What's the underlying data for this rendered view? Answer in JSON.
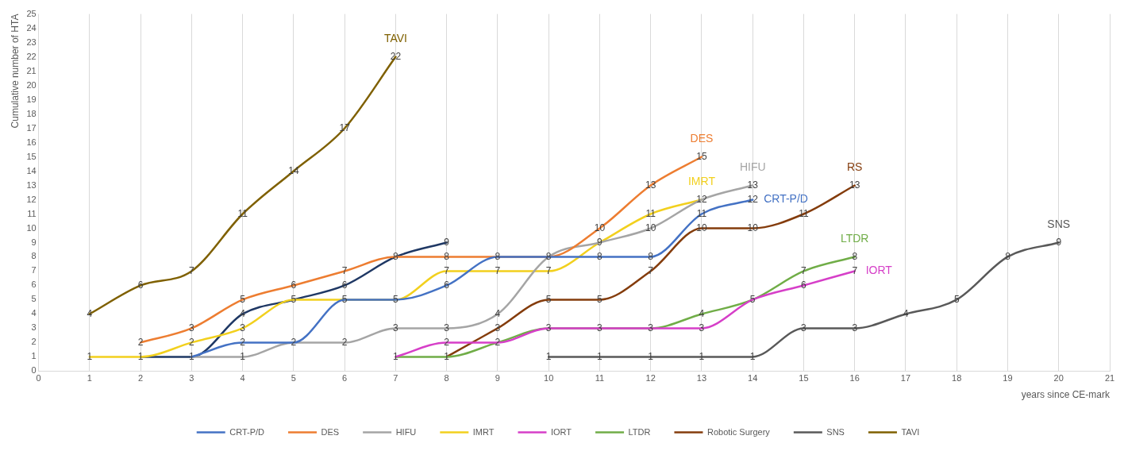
{
  "chart_data": {
    "type": "line",
    "xlabel": "years since CE-mark",
    "ylabel": "Cumulative number of HTA",
    "xlim": [
      0,
      21
    ],
    "xticks": [
      0,
      1,
      2,
      3,
      4,
      5,
      6,
      7,
      8,
      9,
      10,
      11,
      12,
      13,
      14,
      15,
      16,
      17,
      18,
      19,
      20,
      21
    ],
    "ylim": [
      0,
      25
    ],
    "yticks": [
      0,
      1,
      2,
      3,
      4,
      5,
      6,
      7,
      8,
      9,
      10,
      11,
      12,
      13,
      14,
      15,
      16,
      17,
      18,
      19,
      20,
      21,
      22,
      23,
      24,
      25
    ],
    "grid": "x",
    "legend": "bottom",
    "line_style": "solid",
    "series": [
      {
        "name": "CRT-P/D",
        "color": "#4472c4",
        "x": [
          3,
          4,
          5,
          6,
          7,
          8,
          9,
          10,
          11,
          12,
          13,
          14
        ],
        "values": [
          1,
          2,
          2,
          5,
          5,
          6,
          8,
          8,
          8,
          8,
          11,
          12
        ],
        "value_labels": [
          "1",
          "2",
          "2",
          "5",
          "5",
          "6",
          "8",
          "8",
          "8",
          "8",
          "11",
          "12"
        ]
      },
      {
        "name": "DES",
        "color": "#ed7d31",
        "x": [
          2,
          3,
          4,
          5,
          6,
          7,
          8,
          9,
          10,
          11,
          12,
          13
        ],
        "values": [
          2,
          3,
          5,
          6,
          7,
          8,
          8,
          8,
          8,
          10,
          13,
          15
        ],
        "value_labels": [
          "2",
          "3",
          "5",
          "6",
          "7",
          "8",
          "8",
          null,
          null,
          "10",
          "13",
          "15"
        ]
      },
      {
        "name": "HIFU",
        "color": "#a5a5a5",
        "x": [
          3,
          4,
          5,
          6,
          7,
          8,
          9,
          10,
          11,
          12,
          13,
          14
        ],
        "values": [
          1,
          1,
          2,
          2,
          3,
          3,
          4,
          8,
          9,
          10,
          12,
          13
        ],
        "value_labels": [
          null,
          "1",
          null,
          "2",
          "3",
          "3",
          "4",
          null,
          "9",
          "10",
          "12",
          "13"
        ]
      },
      {
        "name": "IMRT",
        "color": "#f2d01e",
        "x": [
          1,
          2,
          3,
          4,
          5,
          6,
          7,
          8,
          9,
          10,
          11,
          12,
          13
        ],
        "values": [
          1,
          1,
          2,
          3,
          5,
          5,
          5,
          7,
          7,
          7,
          9,
          11,
          12
        ],
        "value_labels": [
          "1",
          "1",
          "2",
          "3",
          "5",
          null,
          null,
          "7",
          "7",
          "7",
          null,
          "11",
          null
        ]
      },
      {
        "name": "IORT",
        "color": "#d63fc8",
        "x": [
          7,
          8,
          9,
          10,
          11,
          12,
          13,
          14,
          15,
          16
        ],
        "values": [
          1,
          2,
          2,
          3,
          3,
          3,
          3,
          5,
          6,
          7
        ],
        "value_labels": [
          "1",
          "2",
          "2",
          "3",
          "3",
          "3",
          "3",
          "5",
          "6",
          "7"
        ]
      },
      {
        "name": "LTDR",
        "color": "#70ad47",
        "x": [
          7,
          8,
          9,
          10,
          11,
          12,
          13,
          14,
          15,
          16
        ],
        "values": [
          1,
          1,
          2,
          3,
          3,
          3,
          4,
          5,
          7,
          8
        ],
        "value_labels": [
          null,
          "1",
          null,
          null,
          null,
          null,
          "4",
          null,
          "7",
          "8"
        ]
      },
      {
        "color": "#1f3864",
        "x": [
          2,
          3,
          4,
          5,
          6,
          7,
          8
        ],
        "values": [
          1,
          1,
          4,
          5,
          6,
          8,
          9
        ],
        "value_labels": [
          null,
          null,
          "4",
          null,
          "6",
          null,
          "9"
        ]
      },
      {
        "name": "Robotic Surgery",
        "color": "#843c0c",
        "x": [
          8,
          9,
          10,
          11,
          12,
          13,
          14,
          15,
          16
        ],
        "values": [
          1,
          3,
          5,
          5,
          7,
          10,
          10,
          11,
          13
        ],
        "value_labels": [
          null,
          "3",
          "5",
          "5",
          "7",
          "10",
          "10",
          "11",
          "13"
        ]
      },
      {
        "name": "SNS",
        "color": "#595959",
        "x": [
          10,
          11,
          12,
          13,
          14,
          15,
          16,
          17,
          18,
          19,
          20
        ],
        "values": [
          1,
          1,
          1,
          1,
          1,
          3,
          3,
          4,
          5,
          8,
          9
        ],
        "value_labels": [
          "1",
          "1",
          "1",
          "1",
          "1",
          "3",
          "3",
          "4",
          "5",
          "8",
          "9"
        ]
      },
      {
        "name": "TAVI",
        "color": "#7f6000",
        "x": [
          1,
          2,
          3,
          4,
          5,
          6,
          7
        ],
        "values": [
          4,
          6,
          7,
          11,
          14,
          17,
          22
        ],
        "value_labels": [
          "4",
          "6",
          "7",
          "11",
          "14",
          "17",
          "22"
        ]
      }
    ],
    "annotations": [
      {
        "text": "TAVI",
        "x": 7,
        "y": 22
      },
      {
        "text": "DES",
        "x": 13,
        "y": 15
      },
      {
        "text": "HIFU",
        "x": 14,
        "y": 13
      },
      {
        "text": "IMRT",
        "x": 13,
        "y": 12
      },
      {
        "text": "CRT-P/D",
        "x": 14,
        "y": 12
      },
      {
        "text": "RS",
        "x": 16,
        "y": 13
      },
      {
        "text": "LTDR",
        "x": 16,
        "y": 8
      },
      {
        "text": "IORT",
        "x": 16,
        "y": 7
      },
      {
        "text": "SNS",
        "x": 20,
        "y": 9
      }
    ]
  }
}
